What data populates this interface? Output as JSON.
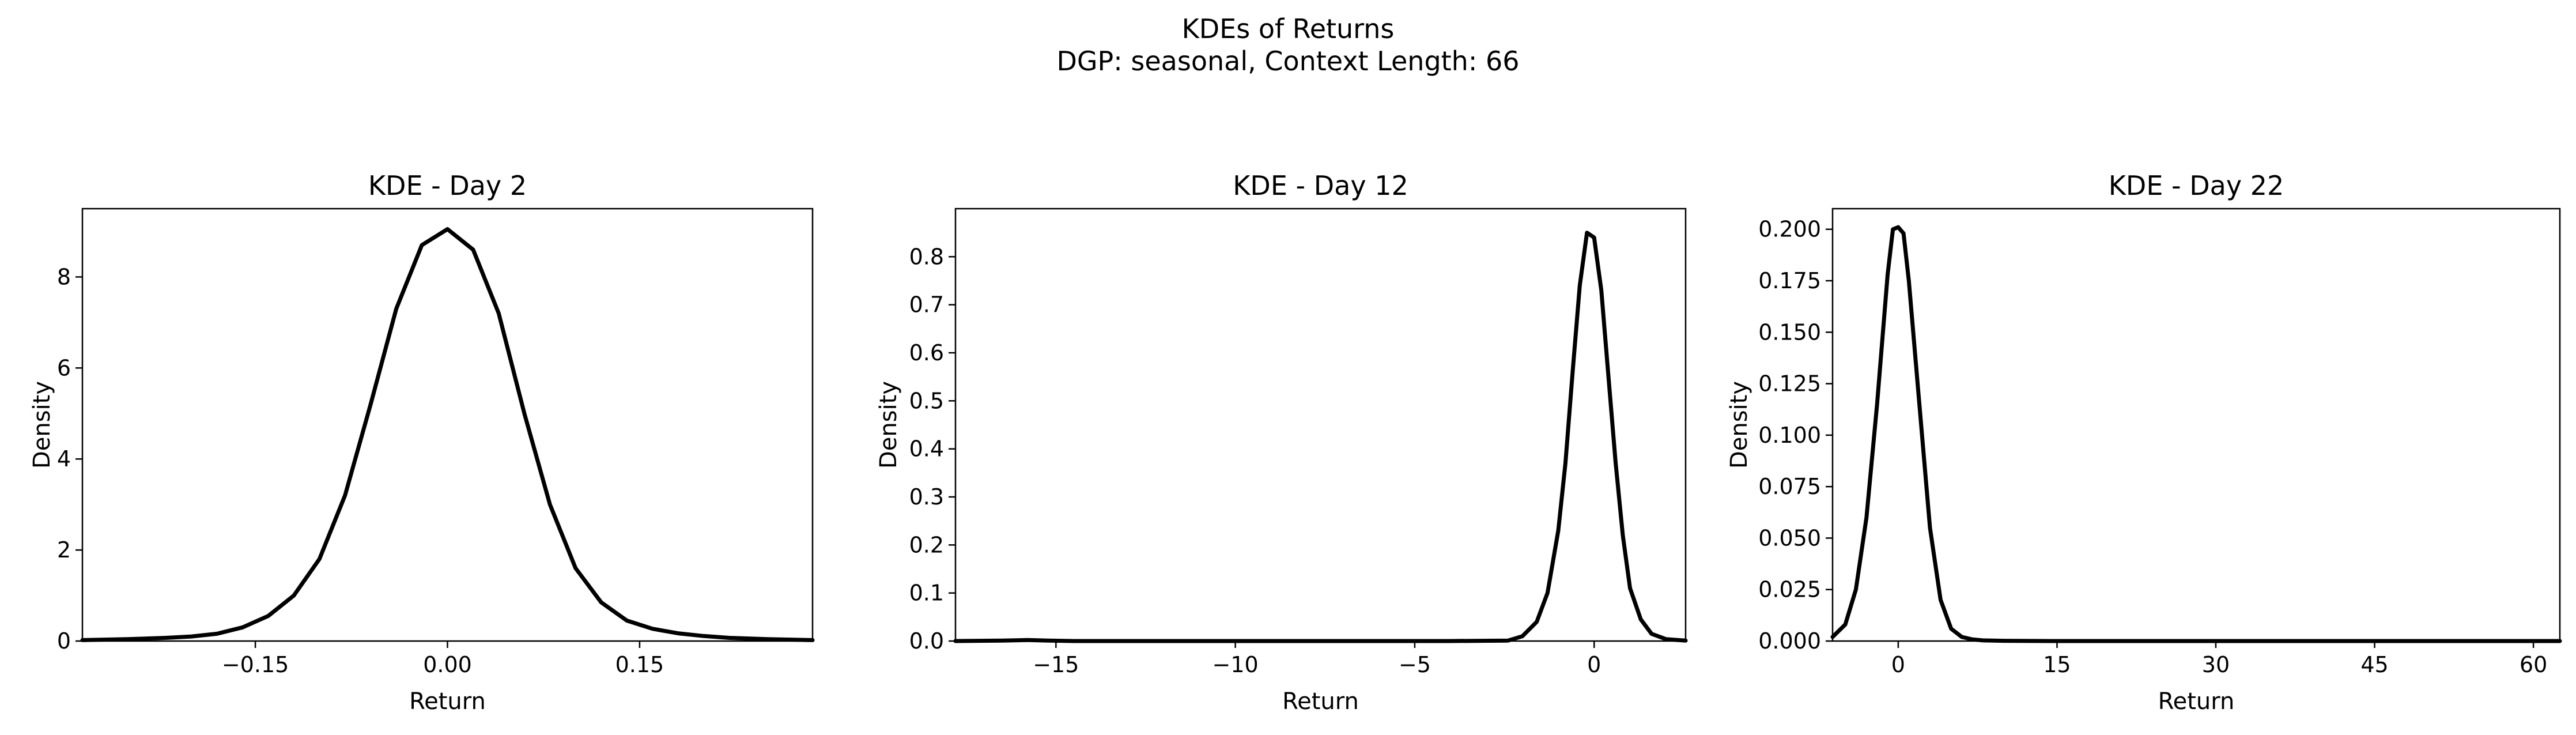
{
  "figure": {
    "title_line1": "KDEs of Returns",
    "title_line2": "DGP: seasonal, Context Length: 66"
  },
  "chart_data": [
    {
      "type": "line",
      "title": "KDE - Day 2",
      "xlabel": "Return",
      "ylabel": "Density",
      "xlim": [
        -0.285,
        0.285
      ],
      "ylim": [
        0,
        9.5
      ],
      "xticks": [
        -0.15,
        0.0,
        0.15
      ],
      "xtick_labels": [
        "−0.15",
        "0.00",
        "0.15"
      ],
      "yticks": [
        0,
        2,
        4,
        6,
        8
      ],
      "ytick_labels": [
        "0",
        "2",
        "4",
        "6",
        "8"
      ],
      "grid": false,
      "line_color": "#000000",
      "series": [
        {
          "x": [
            -0.285,
            -0.25,
            -0.22,
            -0.2,
            -0.18,
            -0.16,
            -0.14,
            -0.12,
            -0.1,
            -0.08,
            -0.06,
            -0.04,
            -0.02,
            0.0,
            0.02,
            0.04,
            0.06,
            0.08,
            0.1,
            0.12,
            0.14,
            0.16,
            0.18,
            0.2,
            0.22,
            0.25,
            0.285
          ],
          "y": [
            0.02,
            0.04,
            0.07,
            0.1,
            0.16,
            0.3,
            0.55,
            1.0,
            1.8,
            3.2,
            5.2,
            7.3,
            8.7,
            9.05,
            8.6,
            7.2,
            5.0,
            3.0,
            1.6,
            0.85,
            0.45,
            0.27,
            0.17,
            0.11,
            0.07,
            0.04,
            0.02
          ]
        }
      ]
    },
    {
      "type": "line",
      "title": "KDE - Day 12",
      "xlabel": "Return",
      "ylabel": "Density",
      "xlim": [
        -17.8,
        2.55
      ],
      "ylim": [
        0,
        0.9
      ],
      "xticks": [
        -15,
        -10,
        -5,
        0
      ],
      "xtick_labels": [
        "−15",
        "−10",
        "−5",
        "0"
      ],
      "yticks": [
        0.0,
        0.1,
        0.2,
        0.3,
        0.4,
        0.5,
        0.6,
        0.7,
        0.8
      ],
      "ytick_labels": [
        "0.0",
        "0.1",
        "0.2",
        "0.3",
        "0.4",
        "0.5",
        "0.6",
        "0.7",
        "0.8"
      ],
      "grid": false,
      "line_color": "#000000",
      "series": [
        {
          "x": [
            -17.8,
            -16.5,
            -15.8,
            -15.2,
            -14.5,
            -12.0,
            -8.0,
            -4.0,
            -2.4,
            -2.0,
            -1.6,
            -1.3,
            -1.0,
            -0.8,
            -0.6,
            -0.4,
            -0.2,
            0.0,
            0.2,
            0.4,
            0.6,
            0.8,
            1.0,
            1.3,
            1.6,
            2.0,
            2.55
          ],
          "y": [
            0.0,
            0.001,
            0.002,
            0.001,
            0.0,
            0.0,
            0.0,
            0.0,
            0.001,
            0.01,
            0.04,
            0.1,
            0.23,
            0.37,
            0.56,
            0.74,
            0.85,
            0.84,
            0.73,
            0.55,
            0.37,
            0.22,
            0.11,
            0.045,
            0.015,
            0.004,
            0.001
          ]
        }
      ]
    },
    {
      "type": "line",
      "title": "KDE - Day 22",
      "xlabel": "Return",
      "ylabel": "Density",
      "xlim": [
        -6.2,
        62.5
      ],
      "ylim": [
        0,
        0.21
      ],
      "xticks": [
        0,
        15,
        30,
        45,
        60
      ],
      "xtick_labels": [
        "0",
        "15",
        "30",
        "45",
        "60"
      ],
      "yticks": [
        0.0,
        0.025,
        0.05,
        0.075,
        0.1,
        0.125,
        0.15,
        0.175,
        0.2
      ],
      "ytick_labels": [
        "0.000",
        "0.025",
        "0.050",
        "0.075",
        "0.100",
        "0.125",
        "0.150",
        "0.175",
        "0.200"
      ],
      "grid": false,
      "line_color": "#000000",
      "series": [
        {
          "x": [
            -6.2,
            -5.0,
            -4.0,
            -3.0,
            -2.0,
            -1.0,
            -0.5,
            0.0,
            0.5,
            1.0,
            2.0,
            3.0,
            4.0,
            5.0,
            6.0,
            7.0,
            8.0,
            10.0,
            15.0,
            30.0,
            45.0,
            62.5
          ],
          "y": [
            0.002,
            0.008,
            0.025,
            0.06,
            0.115,
            0.178,
            0.2,
            0.201,
            0.198,
            0.175,
            0.115,
            0.055,
            0.02,
            0.006,
            0.002,
            0.0008,
            0.0003,
            0.0001,
            0.0,
            0.0,
            0.0,
            0.0
          ]
        }
      ]
    }
  ]
}
